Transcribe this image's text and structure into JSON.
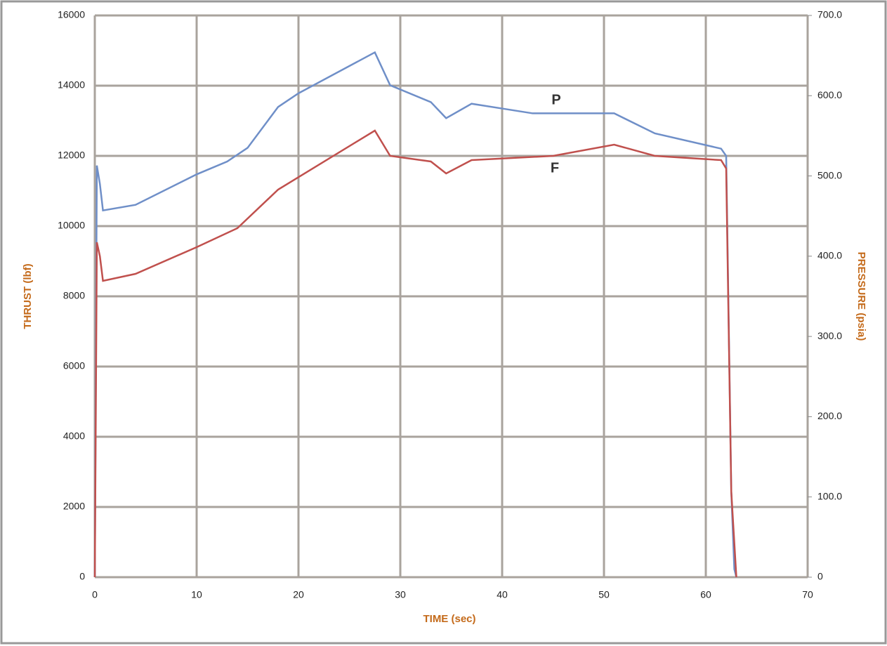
{
  "chart_data": {
    "type": "line",
    "xlabel": "TIME (sec)",
    "ylabel": "THRUST (lbf)",
    "y2label": "PRESSURE (psia)",
    "annotations": [
      "P",
      "F"
    ],
    "xlim": [
      0,
      70
    ],
    "xticks": [
      0,
      10,
      20,
      30,
      40,
      50,
      60,
      70
    ],
    "ylim": [
      0,
      16000
    ],
    "yticks": [
      0,
      2000,
      4000,
      6000,
      8000,
      10000,
      12000,
      14000,
      16000
    ],
    "y2lim": [
      0,
      700
    ],
    "y2ticks": [
      {
        "value": 0,
        "label": "0"
      },
      {
        "value": 100,
        "label": "100.0"
      },
      {
        "value": 200,
        "label": "200.0"
      },
      {
        "value": 300,
        "label": "300.0"
      },
      {
        "value": 400,
        "label": "400.0"
      },
      {
        "value": 500,
        "label": "500.0"
      },
      {
        "value": 600,
        "label": "600.0"
      },
      {
        "value": 700,
        "label": "700.0"
      }
    ],
    "grid": true,
    "series": [
      {
        "name": "P",
        "color": "#6f8fc8",
        "axis": "y2",
        "x": [
          0,
          0.2,
          0.5,
          0.8,
          4,
          10,
          13,
          15,
          18,
          20,
          27.5,
          29,
          33,
          34.5,
          37,
          40,
          43,
          50,
          51,
          55,
          61.5,
          62,
          62.5,
          62.8,
          63
        ],
        "values": [
          0,
          513,
          490,
          457,
          464,
          502,
          518,
          535,
          586,
          603,
          654,
          613,
          592,
          572,
          590,
          584,
          578,
          578,
          578,
          553,
          534,
          525,
          107,
          10,
          0
        ]
      },
      {
        "name": "F",
        "color": "#c0504d",
        "x": [
          0,
          0.2,
          0.5,
          0.8,
          4,
          10,
          14,
          18,
          27.5,
          29,
          33,
          34.5,
          37,
          45,
          51,
          55,
          61.5,
          62,
          62.5,
          63
        ],
        "values": [
          0,
          9540,
          9140,
          8440,
          8640,
          9400,
          9940,
          11040,
          12720,
          12000,
          11840,
          11500,
          11880,
          12000,
          12320,
          12000,
          11880,
          11640,
          2440,
          0
        ]
      }
    ]
  }
}
